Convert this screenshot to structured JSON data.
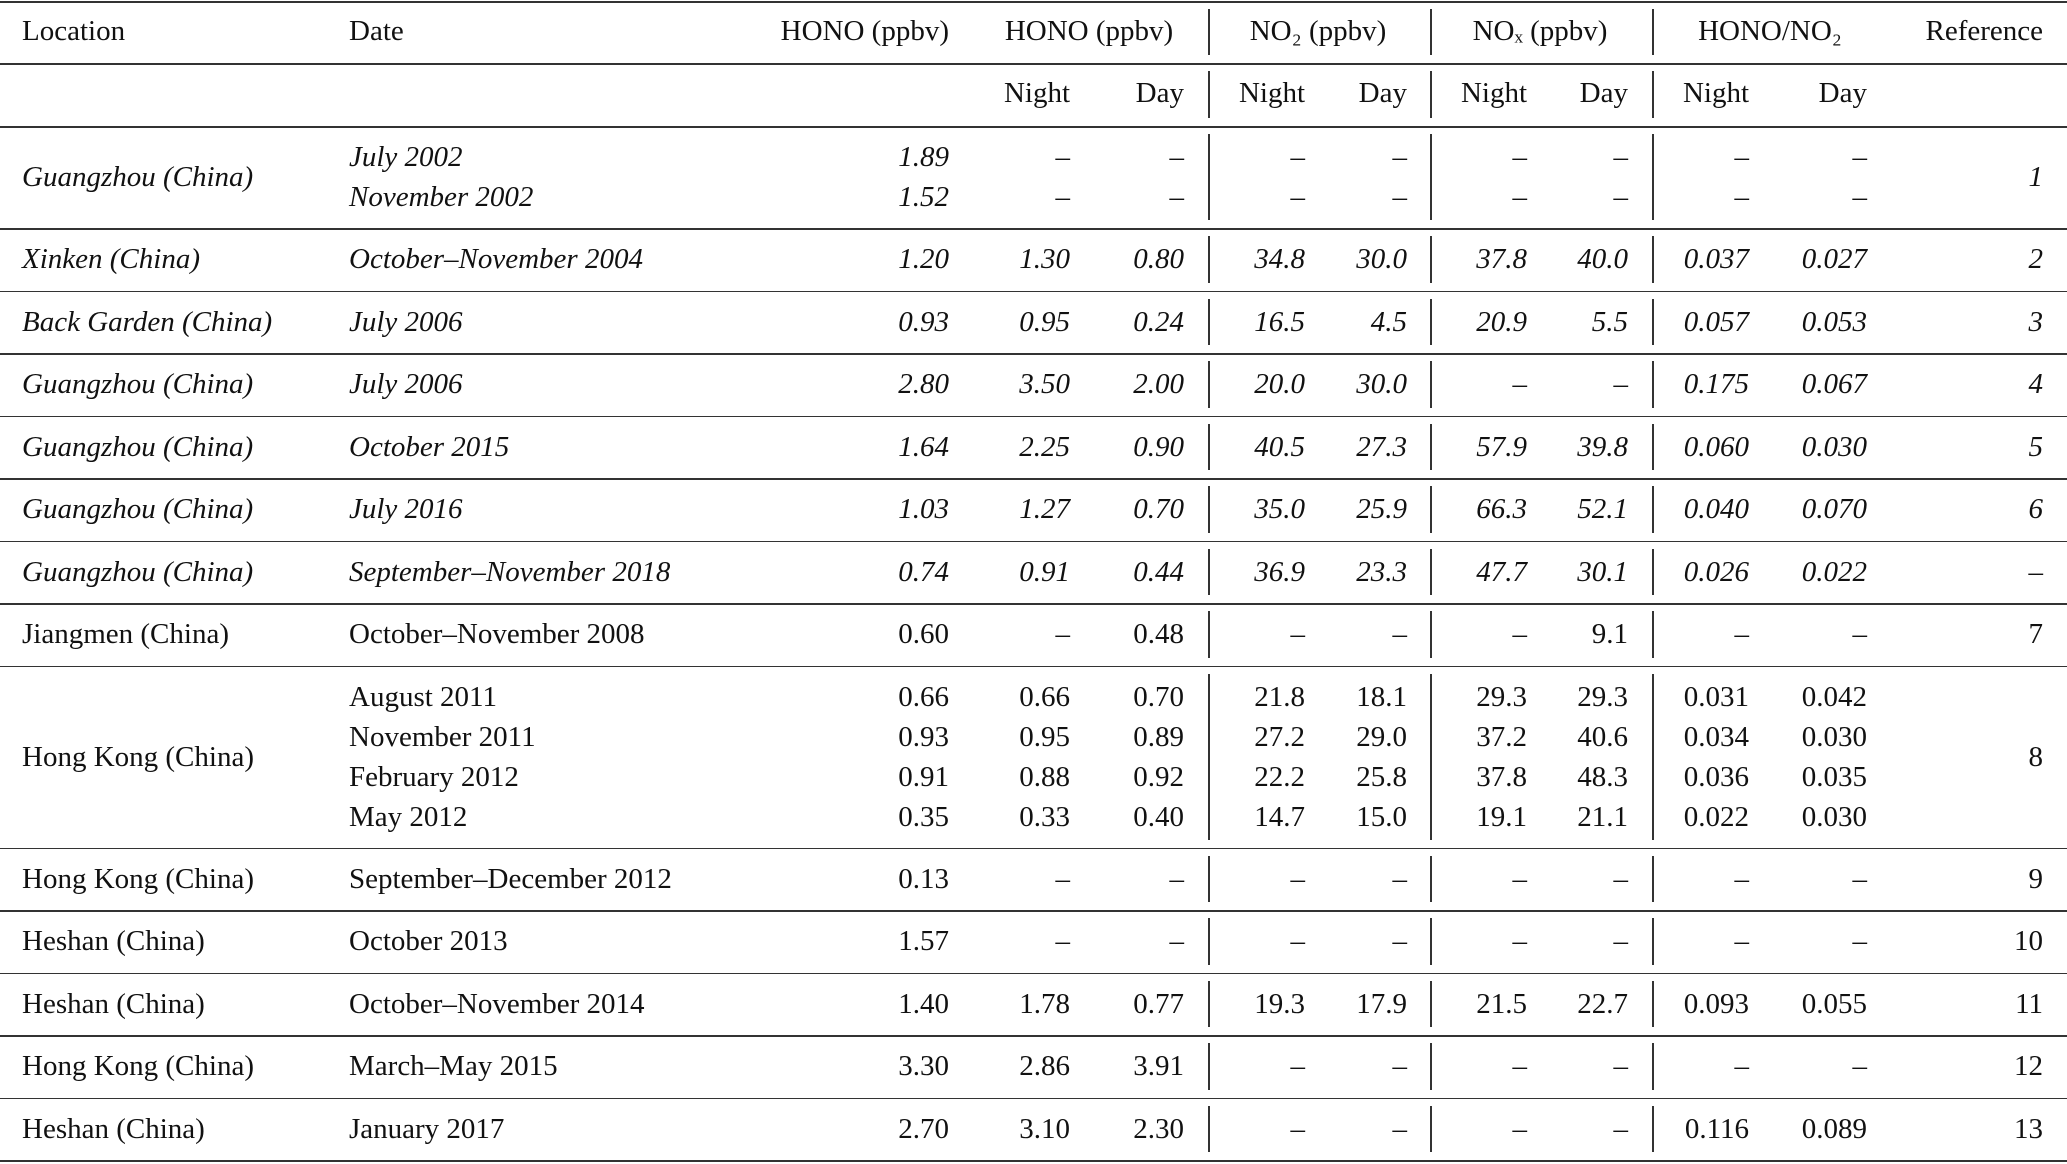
{
  "header": {
    "top": [
      "Location",
      "Date",
      "HONO (ppbv)",
      "HONO (ppbv)",
      "NO₂ (ppbv)",
      "NOₓ (ppbv)",
      "HONO/NO₂",
      "Reference"
    ],
    "sub": [
      "Night",
      "Day",
      "Night",
      "Day",
      "Night",
      "Day",
      "Night",
      "Day"
    ]
  },
  "groups": [
    {
      "location": "Guangzhou (China)",
      "reference": "1",
      "italic": true,
      "rows": [
        [
          "July 2002",
          "1.89",
          "–",
          "–",
          "–",
          "–",
          "–",
          "–",
          "–",
          "–"
        ],
        [
          "November 2002",
          "1.52",
          "–",
          "–",
          "–",
          "–",
          "–",
          "–",
          "–",
          "–"
        ]
      ]
    },
    {
      "location": "Xinken (China)",
      "reference": "2",
      "italic": true,
      "rows": [
        [
          "October–November 2004",
          "1.20",
          "1.30",
          "0.80",
          "34.8",
          "30.0",
          "37.8",
          "40.0",
          "0.037",
          "0.027"
        ]
      ]
    },
    {
      "location": "Back Garden (China)",
      "reference": "3",
      "italic": true,
      "rows": [
        [
          "July 2006",
          "0.93",
          "0.95",
          "0.24",
          "16.5",
          "4.5",
          "20.9",
          "5.5",
          "0.057",
          "0.053"
        ]
      ]
    },
    {
      "location": "Guangzhou (China)",
      "reference": "4",
      "italic": true,
      "rows": [
        [
          "July 2006",
          "2.80",
          "3.50",
          "2.00",
          "20.0",
          "30.0",
          "–",
          "–",
          "0.175",
          "0.067"
        ]
      ]
    },
    {
      "location": "Guangzhou (China)",
      "reference": "5",
      "italic": true,
      "rows": [
        [
          "October 2015",
          "1.64",
          "2.25",
          "0.90",
          "40.5",
          "27.3",
          "57.9",
          "39.8",
          "0.060",
          "0.030"
        ]
      ]
    },
    {
      "location": "Guangzhou (China)",
      "reference": "6",
      "italic": true,
      "rows": [
        [
          "July 2016",
          "1.03",
          "1.27",
          "0.70",
          "35.0",
          "25.9",
          "66.3",
          "52.1",
          "0.040",
          "0.070"
        ]
      ]
    },
    {
      "location": "Guangzhou (China)",
      "reference": "–",
      "italic": true,
      "rows": [
        [
          "September–November 2018",
          "0.74",
          "0.91",
          "0.44",
          "36.9",
          "23.3",
          "47.7",
          "30.1",
          "0.026",
          "0.022"
        ]
      ]
    },
    {
      "location": "Jiangmen (China)",
      "reference": "7",
      "italic": false,
      "rows": [
        [
          "October–November 2008",
          "0.60",
          "–",
          "0.48",
          "–",
          "–",
          "–",
          "9.1",
          "–",
          "–"
        ]
      ]
    },
    {
      "location": "Hong Kong (China)",
      "reference": "8",
      "italic": false,
      "rows": [
        [
          "August 2011",
          "0.66",
          "0.66",
          "0.70",
          "21.8",
          "18.1",
          "29.3",
          "29.3",
          "0.031",
          "0.042"
        ],
        [
          "November 2011",
          "0.93",
          "0.95",
          "0.89",
          "27.2",
          "29.0",
          "37.2",
          "40.6",
          "0.034",
          "0.030"
        ],
        [
          "February 2012",
          "0.91",
          "0.88",
          "0.92",
          "22.2",
          "25.8",
          "37.8",
          "48.3",
          "0.036",
          "0.035"
        ],
        [
          "May 2012",
          "0.35",
          "0.33",
          "0.40",
          "14.7",
          "15.0",
          "19.1",
          "21.1",
          "0.022",
          "0.030"
        ]
      ]
    },
    {
      "location": "Hong Kong (China)",
      "reference": "9",
      "italic": false,
      "rows": [
        [
          "September–December 2012",
          "0.13",
          "–",
          "–",
          "–",
          "–",
          "–",
          "–",
          "–",
          "–"
        ]
      ]
    },
    {
      "location": "Heshan (China)",
      "reference": "10",
      "italic": false,
      "rows": [
        [
          "October 2013",
          "1.57",
          "–",
          "–",
          "–",
          "–",
          "–",
          "–",
          "–",
          "–"
        ]
      ]
    },
    {
      "location": "Heshan (China)",
      "reference": "11",
      "italic": false,
      "rows": [
        [
          "October–November 2014",
          "1.40",
          "1.78",
          "0.77",
          "19.3",
          "17.9",
          "21.5",
          "22.7",
          "0.093",
          "0.055"
        ]
      ]
    },
    {
      "location": "Hong Kong (China)",
      "reference": "12",
      "italic": false,
      "rows": [
        [
          "March–May 2015",
          "3.30",
          "2.86",
          "3.91",
          "–",
          "–",
          "–",
          "–",
          "–",
          "–"
        ]
      ]
    },
    {
      "location": "Heshan (China)",
      "reference": "13",
      "italic": false,
      "rows": [
        [
          "January 2017",
          "2.70",
          "3.10",
          "2.30",
          "–",
          "–",
          "–",
          "–",
          "0.116",
          "0.089"
        ]
      ]
    }
  ]
}
